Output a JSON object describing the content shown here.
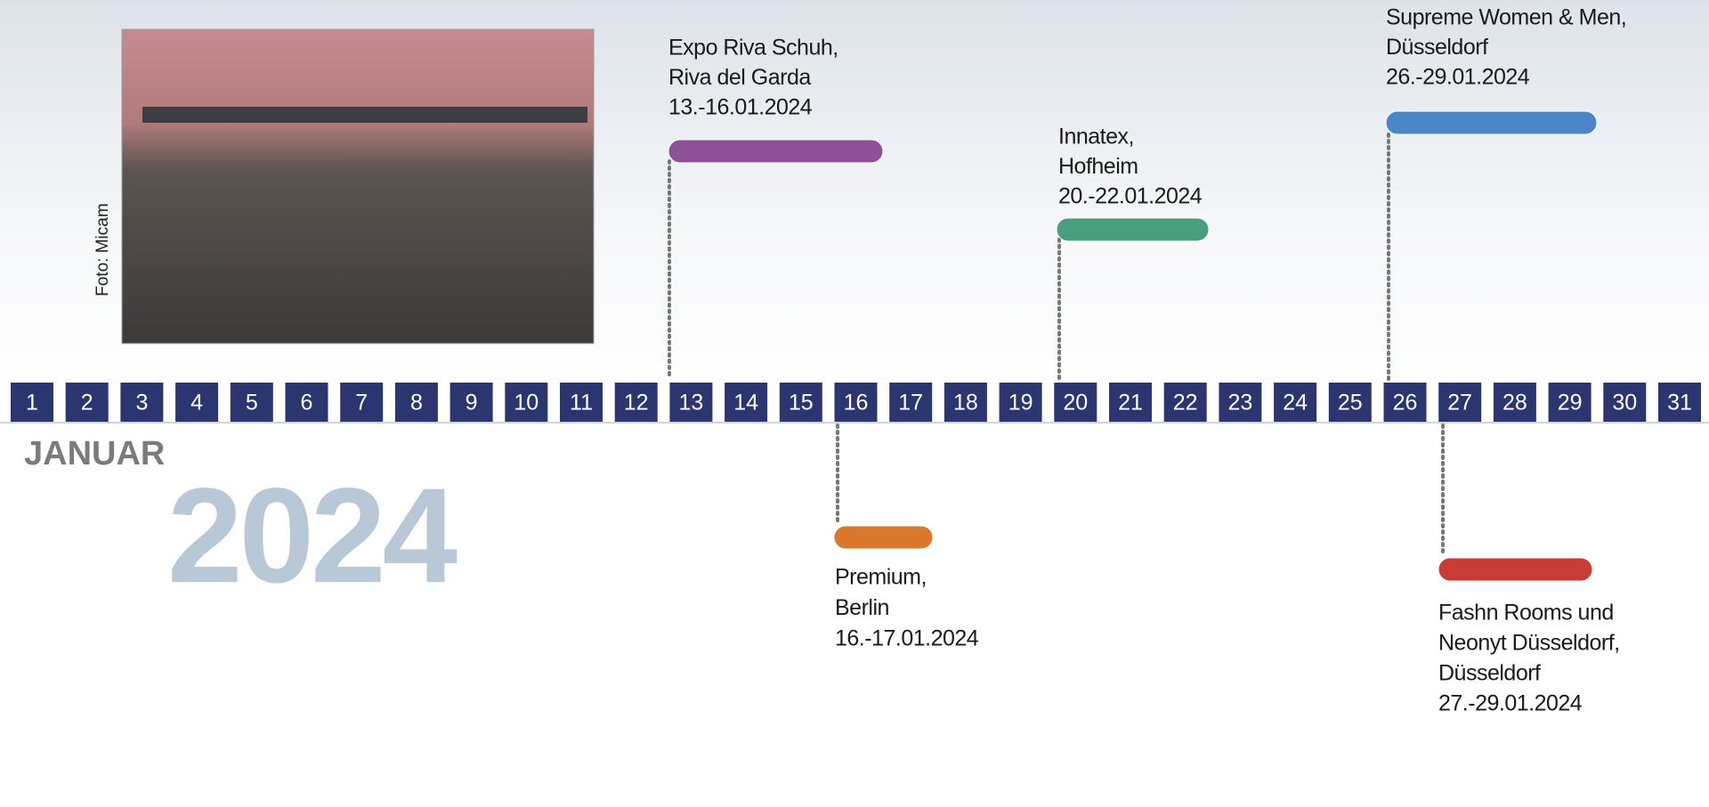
{
  "photo_credit": "Foto: Micam",
  "month": "JANUAR",
  "year": "2024",
  "days": [
    "1",
    "2",
    "3",
    "4",
    "5",
    "6",
    "7",
    "8",
    "9",
    "10",
    "11",
    "12",
    "13",
    "14",
    "15",
    "16",
    "17",
    "18",
    "19",
    "20",
    "21",
    "22",
    "23",
    "24",
    "25",
    "26",
    "27",
    "28",
    "29",
    "30",
    "31"
  ],
  "events": [
    {
      "lines": [
        "Expo Riva Schuh,",
        "Riva del Garda",
        "13.-16.01.2024"
      ],
      "color": "#8e5097"
    },
    {
      "lines": [
        "Innatex,",
        "Hofheim",
        "20.-22.01.2024"
      ],
      "color": "#4a9e7f"
    },
    {
      "lines": [
        "Supreme Women & Men,",
        "Düsseldorf",
        "26.-29.01.2024"
      ],
      "color": "#4a86c8"
    },
    {
      "lines": [
        "Premium,",
        "Berlin",
        "16.-17.01.2024"
      ],
      "color": "#d9782a"
    },
    {
      "lines": [
        "Fashn Rooms und",
        "Neonyt Düsseldorf,",
        "Düsseldorf",
        "27.-29.01.2024"
      ],
      "color": "#c93c36"
    }
  ]
}
